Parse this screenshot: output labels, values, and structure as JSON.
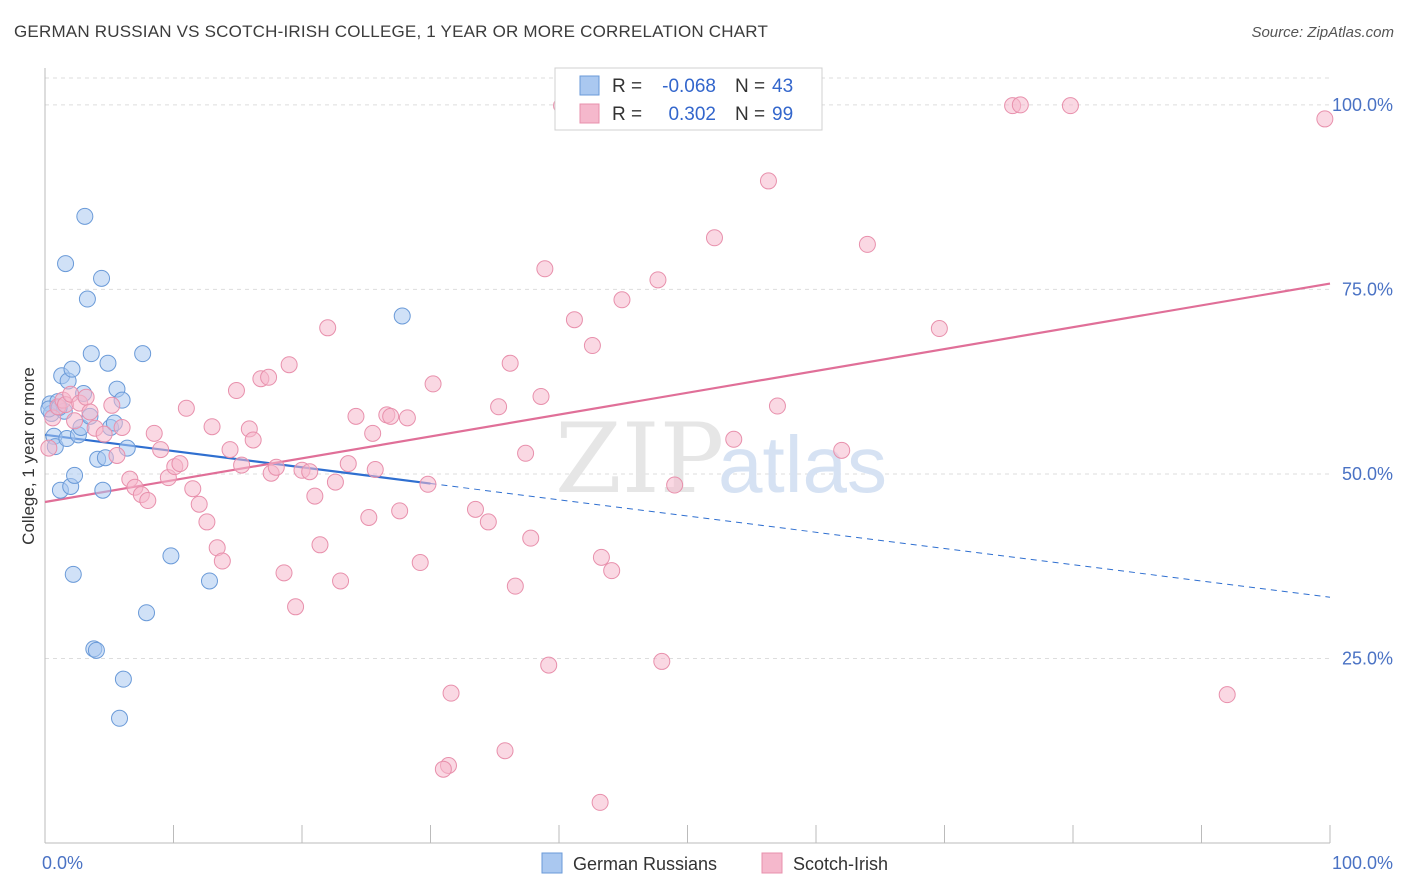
{
  "title": "GERMAN RUSSIAN VS SCOTCH-IRISH COLLEGE, 1 YEAR OR MORE CORRELATION CHART",
  "source": "Source: ZipAtlas.com",
  "watermark": {
    "zip": "ZIP",
    "atlas": "atlas"
  },
  "colors": {
    "blue_fill": "#aac8f0",
    "blue_stroke": "#6a9ad8",
    "blue_line": "#2f6fd0",
    "pink_fill": "#f5b8cc",
    "pink_stroke": "#e890ac",
    "pink_line": "#e06f98",
    "tick_text": "#4a72c4",
    "grid": "#dddddd"
  },
  "legend_top": {
    "rows": [
      {
        "r_label": "R =",
        "r_value": "-0.068",
        "n_label": "N =",
        "n_value": "43",
        "series": "German Russians"
      },
      {
        "r_label": "R =",
        "r_value": "0.302",
        "n_label": "N =",
        "n_value": "99",
        "series": "Scotch-Irish"
      }
    ]
  },
  "chart_data": {
    "type": "scatter",
    "title": "GERMAN RUSSIAN VS SCOTCH-IRISH COLLEGE, 1 YEAR OR MORE CORRELATION CHART",
    "xlabel": "",
    "ylabel": "College, 1 year or more",
    "xlim": [
      0,
      100
    ],
    "ylim": [
      0,
      105
    ],
    "x_tick_labels": [
      "0.0%",
      "100.0%"
    ],
    "y_ticks": [
      25,
      50,
      75,
      100
    ],
    "y_tick_labels": [
      "25.0%",
      "50.0%",
      "75.0%",
      "100.0%"
    ],
    "grid": true,
    "legend_position": "bottom-center",
    "series": [
      {
        "name": "German Russians",
        "r": -0.068,
        "n": 43,
        "trend": {
          "solid_x": [
            0,
            30
          ],
          "y_at_0": 55.3,
          "y_at_100": 33.3
        },
        "points": [
          [
            0.4,
            59.5
          ],
          [
            0.5,
            58.2
          ],
          [
            0.7,
            55.1
          ],
          [
            0.8,
            53.7
          ],
          [
            1.0,
            59.8
          ],
          [
            1.2,
            47.8
          ],
          [
            1.3,
            63.3
          ],
          [
            1.5,
            58.5
          ],
          [
            1.6,
            78.5
          ],
          [
            1.7,
            54.8
          ],
          [
            1.8,
            62.6
          ],
          [
            2.0,
            48.3
          ],
          [
            2.1,
            64.2
          ],
          [
            2.2,
            36.4
          ],
          [
            2.3,
            49.8
          ],
          [
            2.6,
            55.3
          ],
          [
            2.8,
            56.3
          ],
          [
            3.0,
            60.9
          ],
          [
            3.1,
            84.9
          ],
          [
            3.3,
            73.7
          ],
          [
            3.5,
            57.8
          ],
          [
            3.6,
            66.3
          ],
          [
            3.8,
            26.3
          ],
          [
            4.0,
            26.1
          ],
          [
            4.1,
            52.0
          ],
          [
            4.4,
            76.5
          ],
          [
            4.5,
            47.8
          ],
          [
            4.7,
            52.2
          ],
          [
            4.9,
            65.0
          ],
          [
            5.1,
            56.3
          ],
          [
            5.4,
            56.9
          ],
          [
            5.6,
            61.5
          ],
          [
            5.8,
            16.9
          ],
          [
            6.0,
            60.0
          ],
          [
            6.1,
            22.2
          ],
          [
            6.4,
            53.5
          ],
          [
            7.6,
            66.3
          ],
          [
            7.9,
            31.2
          ],
          [
            9.8,
            38.9
          ],
          [
            12.8,
            35.5
          ],
          [
            27.8,
            71.4
          ],
          [
            0.3,
            58.8
          ],
          [
            1.1,
            59.0
          ]
        ]
      },
      {
        "name": "Scotch-Irish",
        "r": 0.302,
        "n": 99,
        "trend": {
          "solid_x": [
            0,
            100
          ],
          "y_at_0": 46.2,
          "y_at_100": 75.8
        },
        "points": [
          [
            0.3,
            53.5
          ],
          [
            0.6,
            57.6
          ],
          [
            1.0,
            59.1
          ],
          [
            1.4,
            60.0
          ],
          [
            1.6,
            59.4
          ],
          [
            2.0,
            60.8
          ],
          [
            2.3,
            57.2
          ],
          [
            2.7,
            59.6
          ],
          [
            3.2,
            60.4
          ],
          [
            3.5,
            58.4
          ],
          [
            3.9,
            56.2
          ],
          [
            4.6,
            55.4
          ],
          [
            5.2,
            59.3
          ],
          [
            5.6,
            52.5
          ],
          [
            6.0,
            56.3
          ],
          [
            6.6,
            49.3
          ],
          [
            7.0,
            48.2
          ],
          [
            7.5,
            47.2
          ],
          [
            8.0,
            46.4
          ],
          [
            8.5,
            55.5
          ],
          [
            9.0,
            53.3
          ],
          [
            9.6,
            49.5
          ],
          [
            10.1,
            51.0
          ],
          [
            10.5,
            51.4
          ],
          [
            11.0,
            58.9
          ],
          [
            11.5,
            48.0
          ],
          [
            12.0,
            45.9
          ],
          [
            12.6,
            43.5
          ],
          [
            13.0,
            56.4
          ],
          [
            13.4,
            40.0
          ],
          [
            13.8,
            38.2
          ],
          [
            14.4,
            53.3
          ],
          [
            14.9,
            61.3
          ],
          [
            15.3,
            51.2
          ],
          [
            15.9,
            56.1
          ],
          [
            16.2,
            54.6
          ],
          [
            16.8,
            62.9
          ],
          [
            17.4,
            63.1
          ],
          [
            17.6,
            50.1
          ],
          [
            18.0,
            50.9
          ],
          [
            18.6,
            36.6
          ],
          [
            19.0,
            64.8
          ],
          [
            19.5,
            32.0
          ],
          [
            20.0,
            50.5
          ],
          [
            20.6,
            50.3
          ],
          [
            21.0,
            47.0
          ],
          [
            21.4,
            40.4
          ],
          [
            22.0,
            69.8
          ],
          [
            22.6,
            48.9
          ],
          [
            23.0,
            35.5
          ],
          [
            23.6,
            51.4
          ],
          [
            24.2,
            57.8
          ],
          [
            25.2,
            44.1
          ],
          [
            25.5,
            55.5
          ],
          [
            26.6,
            58.0
          ],
          [
            26.9,
            57.8
          ],
          [
            27.6,
            45.0
          ],
          [
            28.2,
            57.6
          ],
          [
            29.2,
            38.0
          ],
          [
            29.8,
            48.6
          ],
          [
            30.2,
            62.2
          ],
          [
            31.6,
            20.3
          ],
          [
            31.4,
            10.5
          ],
          [
            31.0,
            10.0
          ],
          [
            33.5,
            45.2
          ],
          [
            34.5,
            43.5
          ],
          [
            35.3,
            59.1
          ],
          [
            36.2,
            65.0
          ],
          [
            36.6,
            34.8
          ],
          [
            37.4,
            52.8
          ],
          [
            37.8,
            41.3
          ],
          [
            38.6,
            60.5
          ],
          [
            38.9,
            77.8
          ],
          [
            39.2,
            24.1
          ],
          [
            40.2,
            99.9
          ],
          [
            40.7,
            100.0
          ],
          [
            40.4,
            100.3
          ],
          [
            41.2,
            70.9
          ],
          [
            42.6,
            67.4
          ],
          [
            43.3,
            38.7
          ],
          [
            44.1,
            36.9
          ],
          [
            44.9,
            73.6
          ],
          [
            46.0,
            99.9
          ],
          [
            47.7,
            76.3
          ],
          [
            48.0,
            24.6
          ],
          [
            49.0,
            48.5
          ],
          [
            52.1,
            82.0
          ],
          [
            53.6,
            54.7
          ],
          [
            56.3,
            89.7
          ],
          [
            57.0,
            59.2
          ],
          [
            62.0,
            53.2
          ],
          [
            64.0,
            81.1
          ],
          [
            69.6,
            69.7
          ],
          [
            75.3,
            99.9
          ],
          [
            75.9,
            100.0
          ],
          [
            79.8,
            99.9
          ],
          [
            92.0,
            20.1
          ],
          [
            99.6,
            98.1
          ],
          [
            35.8,
            12.5
          ],
          [
            43.2,
            5.5
          ],
          [
            25.7,
            50.6
          ]
        ]
      }
    ]
  },
  "bottom_legend": [
    {
      "label": "German Russians"
    },
    {
      "label": "Scotch-Irish"
    }
  ]
}
